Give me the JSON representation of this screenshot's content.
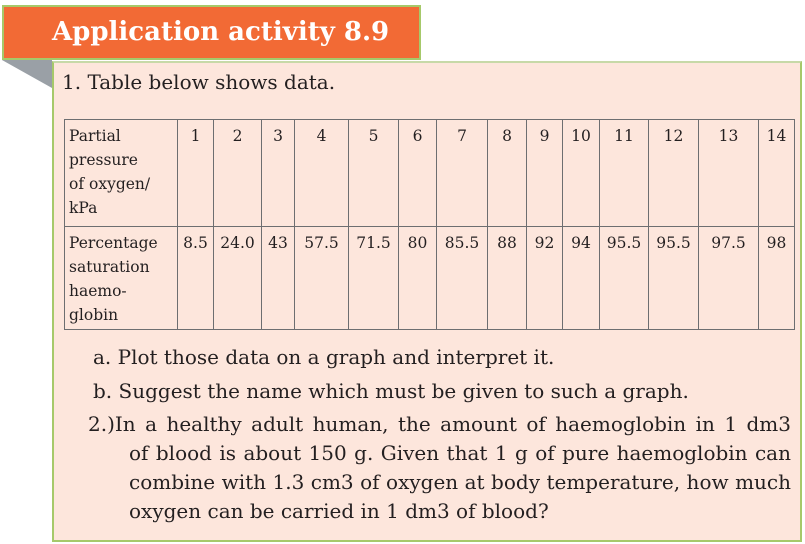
{
  "header": {
    "title": "Application activity 8.9"
  },
  "question1": {
    "intro": "1. Table below shows data.",
    "table": {
      "row1_label_lines": [
        "Partial",
        "pressure",
        "of oxygen/",
        "kPa"
      ],
      "row1_values": [
        "1",
        "2",
        "3",
        "4",
        "5",
        "6",
        "7",
        "8",
        "9",
        "10",
        "11",
        "12",
        "13",
        "14"
      ],
      "row2_label_lines": [
        "Percentage",
        "saturation",
        "haemo-",
        "globin"
      ],
      "row2_values": [
        "8.5",
        "24.0",
        "43",
        "57.5",
        "71.5",
        "80",
        "85.5",
        "88",
        "92",
        "94",
        "95.5",
        "95.5",
        "97.5",
        "98"
      ]
    },
    "item_a": "a. Plot those data on a graph and interpret it.",
    "item_b": "b. Suggest the name which must be given to such a graph."
  },
  "question2": {
    "lines": [
      "2.)In a healthy adult human, the amount of haemoglobin in 1 dm3",
      "of blood is about 150 g. Given that 1 g of pure haemoglobin can",
      "combine with 1.3 cm3 of oxygen at body temperature, how much",
      "oxygen can be carried in 1 dm3 of blood?"
    ]
  }
}
